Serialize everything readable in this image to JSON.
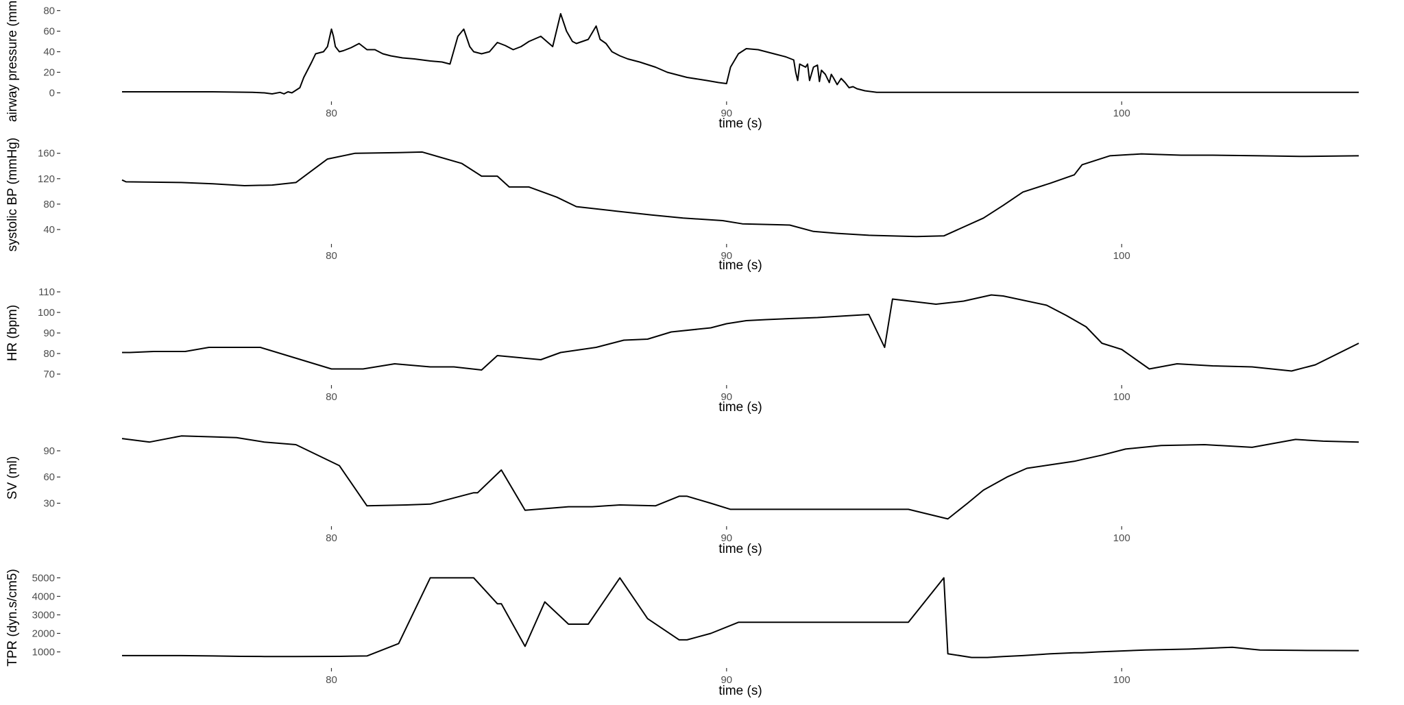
{
  "chart_data": [
    {
      "type": "line",
      "xlabel": "time (s)",
      "ylabel": "airway pressure (mmHg)",
      "xlim": [
        74.7,
        106.0
      ],
      "x_ticks": [
        "80",
        "90",
        "100"
      ],
      "ylim": [
        -3,
        85
      ],
      "y_ticks": [
        "0",
        "20",
        "40",
        "60",
        "80"
      ],
      "grid": false,
      "series": [
        {
          "x": [
            74.7,
            76.0,
            77.0,
            78.0,
            78.3,
            78.5,
            78.7,
            78.8,
            78.9,
            79.0,
            79.2,
            79.3,
            79.5,
            79.6,
            79.8,
            79.9,
            80.0,
            80.05,
            80.1,
            80.2,
            80.3,
            80.5,
            80.7,
            80.9,
            81.1,
            81.3,
            81.5,
            81.8,
            82.1,
            82.5,
            82.8,
            83.0,
            83.2,
            83.35,
            83.5,
            83.6,
            83.8,
            84.0,
            84.2,
            84.4,
            84.6,
            84.8,
            85.0,
            85.3,
            85.6,
            85.8,
            85.95,
            86.1,
            86.2,
            86.5,
            86.7,
            86.8,
            86.95,
            87.1,
            87.3,
            87.5,
            87.8,
            88.2,
            88.5,
            89.0,
            89.5,
            89.8,
            90.0,
            90.1,
            90.3,
            90.5,
            90.8,
            91.2,
            91.5,
            91.7,
            91.75,
            91.8,
            91.85,
            91.9,
            92.0,
            92.05,
            92.1,
            92.2,
            92.3,
            92.35,
            92.4,
            92.5,
            92.6,
            92.65,
            92.7,
            92.8,
            92.9,
            93.0,
            93.1,
            93.2,
            93.3,
            93.5,
            93.7,
            93.8,
            94.0,
            95.0,
            96.0,
            98.0,
            100.0,
            102.0,
            104.0,
            106.0
          ],
          "y": [
            1,
            1,
            1,
            0.5,
            0,
            -1,
            0.5,
            -1,
            1,
            0,
            5,
            15,
            30,
            38,
            40,
            45,
            62,
            55,
            45,
            40,
            41,
            44,
            48,
            42,
            42,
            38,
            36,
            34,
            33,
            31,
            30,
            28,
            55,
            62,
            45,
            40,
            38,
            40,
            49,
            46,
            42,
            45,
            50,
            55,
            45,
            77,
            60,
            50,
            48,
            52,
            65,
            52,
            48,
            40,
            36,
            33,
            30,
            25,
            20,
            15,
            12,
            10,
            9,
            25,
            38,
            43,
            42,
            38,
            35,
            32,
            20,
            12,
            28,
            27,
            25,
            28,
            12,
            25,
            27,
            11,
            22,
            18,
            10,
            18,
            15,
            8,
            14,
            10,
            5,
            6,
            4,
            2,
            1,
            0.5,
            0.5,
            0.5,
            0.5,
            0.5,
            0.5,
            0.5,
            0.5,
            0.5
          ]
        }
      ]
    },
    {
      "type": "line",
      "xlabel": "time (s)",
      "ylabel": "systolic BP (mmHg)",
      "xlim": [
        74.7,
        106.0
      ],
      "x_ticks": [
        "80",
        "90",
        "100"
      ],
      "ylim": [
        26,
        164
      ],
      "y_ticks": [
        "40",
        "80",
        "120",
        "160"
      ],
      "grid": false,
      "series": [
        {
          "x": [
            74.7,
            74.8,
            76.2,
            77.0,
            77.8,
            78.5,
            79.1,
            79.9,
            80.6,
            81.7,
            82.3,
            83.3,
            83.8,
            84.2,
            84.5,
            85.0,
            85.7,
            86.2,
            87.2,
            88.1,
            88.9,
            89.9,
            90.4,
            91.6,
            92.2,
            92.8,
            93.6,
            94.8,
            95.5,
            96.5,
            97.0,
            97.5,
            98.2,
            98.8,
            99.0,
            99.7,
            100.5,
            101.5,
            102.3,
            103.5,
            104.5,
            106.0
          ],
          "y": [
            118,
            115,
            114,
            112,
            109,
            110,
            114,
            151,
            160,
            161,
            162,
            144,
            124,
            124,
            107,
            107,
            91,
            76,
            69,
            63,
            58,
            54,
            49,
            47,
            37,
            34,
            31,
            29,
            30,
            58,
            78,
            99,
            113,
            126,
            142,
            156,
            159,
            157,
            157,
            156,
            155,
            156
          ]
        }
      ]
    },
    {
      "type": "line",
      "xlabel": "time (s)",
      "ylabel": "HR (bpm)",
      "xlim": [
        74.7,
        106.0
      ],
      "x_ticks": [
        "80",
        "90",
        "100"
      ],
      "ylim": [
        68,
        112
      ],
      "y_ticks": [
        "70",
        "80",
        "90",
        "100",
        "110"
      ],
      "grid": false,
      "series": [
        {
          "x": [
            74.7,
            74.9,
            75.5,
            76.3,
            76.9,
            77.1,
            77.3,
            78.2,
            80.0,
            80.8,
            81.6,
            82.5,
            83.1,
            83.8,
            84.2,
            85.3,
            85.8,
            86.7,
            87.4,
            88.0,
            88.6,
            89.6,
            90.0,
            90.5,
            91.0,
            91.6,
            92.3,
            93.6,
            94.0,
            94.2,
            95.3,
            96.0,
            96.7,
            97.0,
            98.1,
            98.6,
            99.1,
            99.5,
            100.0,
            100.7,
            101.4,
            102.3,
            103.3,
            104.3,
            104.9,
            106.0
          ],
          "y": [
            80.5,
            80.5,
            81,
            81,
            83,
            83,
            83,
            83,
            72.5,
            72.5,
            75,
            73.5,
            73.5,
            72,
            79,
            77,
            80.5,
            83,
            86.5,
            87,
            90.5,
            92.5,
            94.5,
            96,
            96.5,
            97,
            97.5,
            99,
            83,
            106.5,
            104,
            105.5,
            108.5,
            108,
            103.5,
            98.5,
            93,
            85,
            82,
            72.5,
            75,
            74,
            73.5,
            71.5,
            74.5,
            85
          ]
        }
      ]
    },
    {
      "type": "line",
      "xlabel": "time (s)",
      "ylabel": "SV (ml)",
      "xlim": [
        74.7,
        106.0
      ],
      "x_ticks": [
        "80",
        "90",
        "100"
      ],
      "ylim": [
        10,
        108
      ],
      "y_ticks": [
        "30",
        "60",
        "90"
      ],
      "grid": false,
      "series": [
        {
          "x": [
            74.7,
            75.4,
            76.2,
            77.0,
            77.6,
            78.3,
            79.1,
            80.2,
            80.9,
            81.9,
            82.5,
            83.6,
            83.7,
            84.3,
            84.9,
            86.0,
            86.6,
            87.3,
            88.2,
            88.8,
            89.0,
            89.6,
            90.1,
            91.0,
            92.2,
            93.6,
            94.6,
            95.6,
            96.1,
            96.5,
            97.1,
            97.6,
            98.2,
            98.8,
            99.0,
            99.5,
            100.1,
            101.0,
            102.1,
            103.3,
            104.4,
            105.1,
            106.0
          ],
          "y": [
            104,
            100,
            107,
            106,
            105,
            100,
            97,
            73,
            27,
            28,
            29,
            42,
            42,
            68,
            22,
            26,
            26,
            28,
            27,
            38,
            38,
            30,
            23,
            23,
            23,
            23,
            23,
            12,
            30,
            45,
            60,
            70,
            74,
            78,
            80,
            85,
            92,
            96,
            97,
            94,
            103,
            101,
            100
          ]
        }
      ]
    },
    {
      "type": "line",
      "xlabel": "time (s)",
      "ylabel": "TPR (dyn.s/cm5)",
      "xlim": [
        74.7,
        106.0
      ],
      "x_ticks": [
        "80",
        "90",
        "100"
      ],
      "ylim": [
        500,
        5200
      ],
      "y_ticks": [
        "1000",
        "2000",
        "3000",
        "4000",
        "5000"
      ],
      "grid": false,
      "series": [
        {
          "x": [
            74.7,
            76.2,
            77.0,
            77.7,
            78.3,
            79.1,
            80.2,
            80.9,
            81.7,
            82.5,
            83.6,
            84.2,
            84.3,
            84.9,
            85.4,
            86.0,
            86.5,
            87.3,
            88.0,
            88.8,
            89.0,
            89.6,
            90.3,
            91.2,
            92.2,
            93.6,
            94.6,
            95.5,
            95.6,
            96.2,
            96.6,
            97.0,
            97.5,
            98.2,
            98.8,
            99.0,
            99.4,
            100.0,
            100.6,
            101.7,
            102.8,
            103.5,
            104.5,
            106.0
          ],
          "y": [
            800,
            800,
            780,
            760,
            750,
            750,
            760,
            780,
            1450,
            5000,
            5000,
            3600,
            3600,
            1300,
            3700,
            2500,
            2500,
            5000,
            2800,
            1650,
            1650,
            2000,
            2600,
            2600,
            2600,
            2600,
            2600,
            5000,
            900,
            700,
            700,
            750,
            800,
            900,
            950,
            950,
            1000,
            1050,
            1100,
            1150,
            1250,
            1100,
            1080,
            1070
          ]
        }
      ]
    }
  ]
}
